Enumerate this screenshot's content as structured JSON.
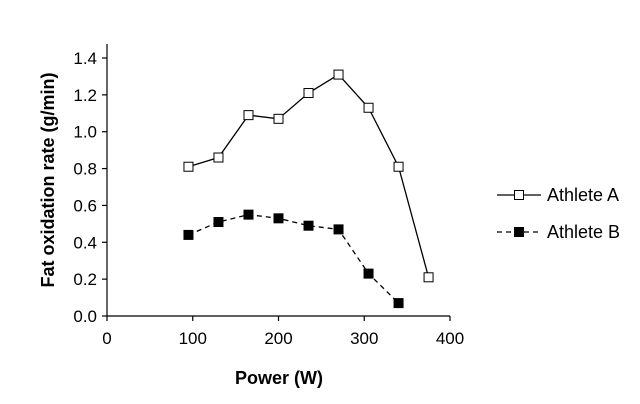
{
  "chart_data": {
    "type": "line",
    "xlabel": "Power (W)",
    "ylabel": "Fat oxidation rate (g/min)",
    "xlim": [
      0,
      400
    ],
    "ylim": [
      0,
      1.4
    ],
    "x_ticks": [
      0,
      100,
      200,
      300,
      400
    ],
    "y_ticks": [
      0.0,
      0.2,
      0.4,
      0.6,
      0.8,
      1.0,
      1.2,
      1.4
    ],
    "x_tick_labels": [
      "0",
      "100",
      "200",
      "300",
      "400"
    ],
    "y_tick_labels": [
      "0.0",
      "0.2",
      "0.4",
      "0.6",
      "0.8",
      "1.0",
      "1.2",
      "1.4"
    ],
    "grid": false,
    "legend_position": "right",
    "series": [
      {
        "name": "Athlete A",
        "marker": "open-square",
        "line_style": "solid",
        "color": "#000000",
        "x": [
          95,
          130,
          165,
          200,
          235,
          270,
          305,
          340,
          375
        ],
        "y": [
          0.81,
          0.86,
          1.09,
          1.07,
          1.21,
          1.31,
          1.13,
          0.81,
          0.21
        ]
      },
      {
        "name": "Athlete B",
        "marker": "filled-square",
        "line_style": "dashed",
        "color": "#000000",
        "x": [
          95,
          130,
          165,
          200,
          235,
          270,
          305,
          340
        ],
        "y": [
          0.44,
          0.51,
          0.55,
          0.53,
          0.49,
          0.47,
          0.23,
          0.07
        ]
      }
    ]
  }
}
